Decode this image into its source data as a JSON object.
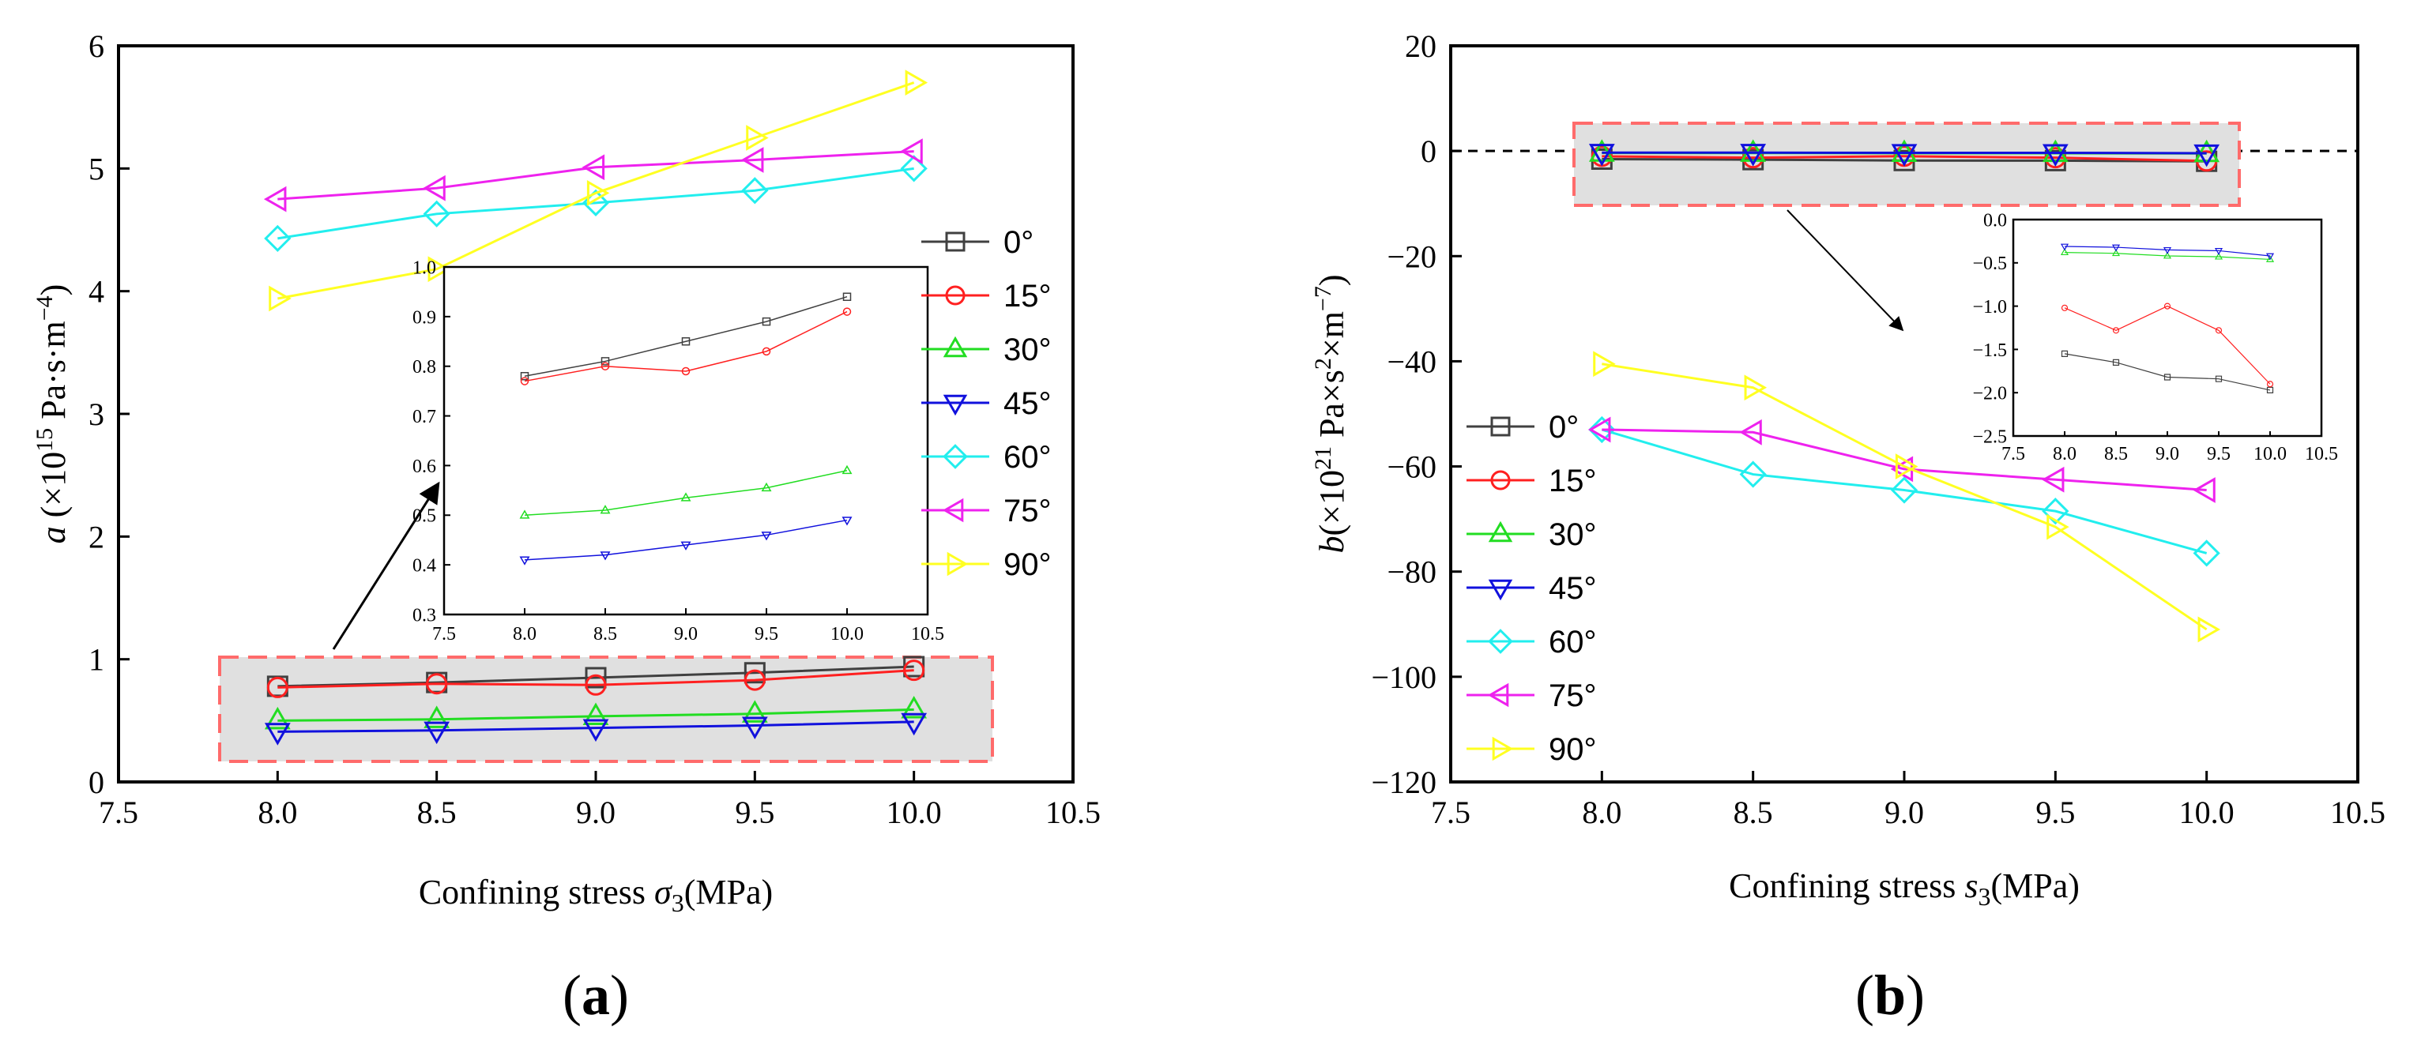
{
  "panels": [
    {
      "caption_open": "(",
      "caption_letter": "a",
      "caption_close": ")",
      "xlabel_text": "Confining stress ",
      "xlabel_symbol": "σ",
      "xlabel_sub": "3",
      "xlabel_unit": "(MPa)",
      "ylabel_var": "a",
      "ylabel_pre": " (×10",
      "ylabel_exp": "15",
      "ylabel_mid": " Pa·s·m",
      "ylabel_exp2": "−4",
      "ylabel_post": ")"
    },
    {
      "caption_open": "(",
      "caption_letter": "b",
      "caption_close": ")",
      "xlabel_text": "Confining stress ",
      "xlabel_symbol": "s",
      "xlabel_sub": "3",
      "xlabel_unit": "(MPa)",
      "ylabel_var": "b",
      "ylabel_pre": "(×10",
      "ylabel_exp": "21",
      "ylabel_mid": " Pa×s",
      "ylabel_exp2": "2",
      "ylabel_mid2": "×m",
      "ylabel_exp3": "−7",
      "ylabel_post": ")"
    }
  ],
  "chart_data": [
    {
      "type": "line",
      "panel": "a",
      "x": [
        8.0,
        8.5,
        9.0,
        9.5,
        10.0
      ],
      "xlim": [
        7.5,
        10.5
      ],
      "ylim": [
        0,
        6
      ],
      "xticks": [
        "7.5",
        "8.0",
        "8.5",
        "9.0",
        "9.5",
        "10.0",
        "10.5"
      ],
      "yticks": [
        "0",
        "1",
        "2",
        "3",
        "4",
        "5",
        "6"
      ],
      "legend_position": "right",
      "series": [
        {
          "name": "0°",
          "color": "#404040",
          "marker": "square",
          "values": [
            0.78,
            0.81,
            0.85,
            0.89,
            0.94
          ]
        },
        {
          "name": "15°",
          "color": "#ff2020",
          "marker": "circle",
          "values": [
            0.77,
            0.8,
            0.79,
            0.83,
            0.91
          ]
        },
        {
          "name": "30°",
          "color": "#22dd22",
          "marker": "triangle-up",
          "values": [
            0.5,
            0.51,
            0.535,
            0.555,
            0.59
          ]
        },
        {
          "name": "45°",
          "color": "#1111dd",
          "marker": "triangle-down",
          "values": [
            0.41,
            0.42,
            0.44,
            0.46,
            0.49
          ]
        },
        {
          "name": "60°",
          "color": "#22eeee",
          "marker": "diamond",
          "values": [
            4.43,
            4.63,
            4.72,
            4.82,
            5.0
          ]
        },
        {
          "name": "75°",
          "color": "#ee22ee",
          "marker": "triangle-left",
          "values": [
            4.75,
            4.84,
            5.01,
            5.07,
            5.14
          ]
        },
        {
          "name": "90°",
          "color": "#ffff22",
          "marker": "triangle-right",
          "values": [
            3.94,
            4.18,
            4.8,
            5.25,
            5.7
          ]
        }
      ],
      "inset": {
        "xlim": [
          7.5,
          10.5
        ],
        "ylim": [
          0.3,
          1.0
        ],
        "xticks": [
          "7.5",
          "8.0",
          "8.5",
          "9.0",
          "9.5",
          "10.0",
          "10.5"
        ],
        "yticks": [
          "0.3",
          "0.4",
          "0.5",
          "0.6",
          "0.7",
          "0.8",
          "0.9",
          "1.0"
        ],
        "series_shown": [
          "0°",
          "15°",
          "30°",
          "45°"
        ]
      }
    },
    {
      "type": "line",
      "panel": "b",
      "x": [
        8.0,
        8.5,
        9.0,
        9.5,
        10.0
      ],
      "xlim": [
        7.5,
        10.5
      ],
      "ylim": [
        -120,
        20
      ],
      "xticks": [
        "7.5",
        "8.0",
        "8.5",
        "9.0",
        "9.5",
        "10.0",
        "10.5"
      ],
      "yticks": [
        "20",
        "0",
        "−20",
        "−40",
        "−60",
        "−80",
        "−100",
        "−120"
      ],
      "reference_line": 0,
      "legend_position": "left",
      "series": [
        {
          "name": "0°",
          "color": "#404040",
          "marker": "square",
          "values": [
            -1.55,
            -1.65,
            -1.82,
            -1.84,
            -1.97
          ]
        },
        {
          "name": "15°",
          "color": "#ff2020",
          "marker": "circle",
          "values": [
            -1.02,
            -1.28,
            -1.0,
            -1.28,
            -1.9
          ]
        },
        {
          "name": "30°",
          "color": "#22dd22",
          "marker": "triangle-up",
          "values": [
            -0.38,
            -0.39,
            -0.42,
            -0.43,
            -0.46
          ]
        },
        {
          "name": "45°",
          "color": "#1111dd",
          "marker": "triangle-down",
          "values": [
            -0.31,
            -0.32,
            -0.35,
            -0.36,
            -0.42
          ]
        },
        {
          "name": "60°",
          "color": "#22eeee",
          "marker": "diamond",
          "values": [
            -53,
            -61.5,
            -64.5,
            -68.5,
            -76.5
          ]
        },
        {
          "name": "75°",
          "color": "#ee22ee",
          "marker": "triangle-left",
          "values": [
            -53,
            -53.5,
            -60.5,
            -62.5,
            -64.5
          ]
        },
        {
          "name": "90°",
          "color": "#ffff22",
          "marker": "triangle-right",
          "values": [
            -40.5,
            -45,
            -60,
            -71.5,
            -91
          ]
        }
      ],
      "inset": {
        "xlim": [
          7.5,
          10.5
        ],
        "ylim": [
          -2.5,
          0.0
        ],
        "xticks": [
          "7.5",
          "8.0",
          "8.5",
          "9.0",
          "9.5",
          "10.0",
          "10.5"
        ],
        "yticks": [
          "0.0",
          "−0.5",
          "−1.0",
          "−1.5",
          "−2.0",
          "−2.5"
        ],
        "series_shown": [
          "0°",
          "15°",
          "30°",
          "45°"
        ]
      }
    }
  ]
}
